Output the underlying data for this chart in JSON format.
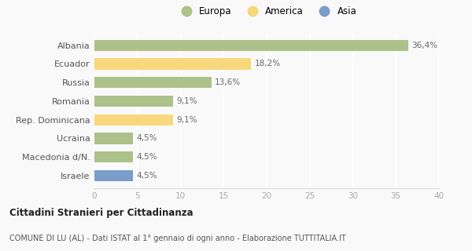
{
  "categories": [
    "Israele",
    "Macedonia d/N.",
    "Ucraina",
    "Rep. Dominicana",
    "Romania",
    "Russia",
    "Ecuador",
    "Albania"
  ],
  "values": [
    4.5,
    4.5,
    4.5,
    9.1,
    9.1,
    13.6,
    18.2,
    36.4
  ],
  "labels": [
    "4,5%",
    "4,5%",
    "4,5%",
    "9,1%",
    "9,1%",
    "13,6%",
    "18,2%",
    "36,4%"
  ],
  "colors": [
    "#7a9dc9",
    "#adc18a",
    "#adc18a",
    "#f7d87c",
    "#adc18a",
    "#adc18a",
    "#f7d87c",
    "#adc18a"
  ],
  "legend": [
    {
      "label": "Europa",
      "color": "#adc18a"
    },
    {
      "label": "America",
      "color": "#f7d87c"
    },
    {
      "label": "Asia",
      "color": "#7a9dc9"
    }
  ],
  "xlim": [
    0,
    40
  ],
  "xticks": [
    0,
    5,
    10,
    15,
    20,
    25,
    30,
    35,
    40
  ],
  "title_bold": "Cittadini Stranieri per Cittadinanza",
  "subtitle": "COMUNE DI LU (AL) - Dati ISTAT al 1° gennaio di ogni anno - Elaborazione TUTTITALIA.IT",
  "background_color": "#f9f9f9",
  "bar_height": 0.6,
  "label_color": "#666666",
  "ytick_color": "#555555",
  "xtick_color": "#aaaaaa",
  "grid_color": "#ffffff"
}
